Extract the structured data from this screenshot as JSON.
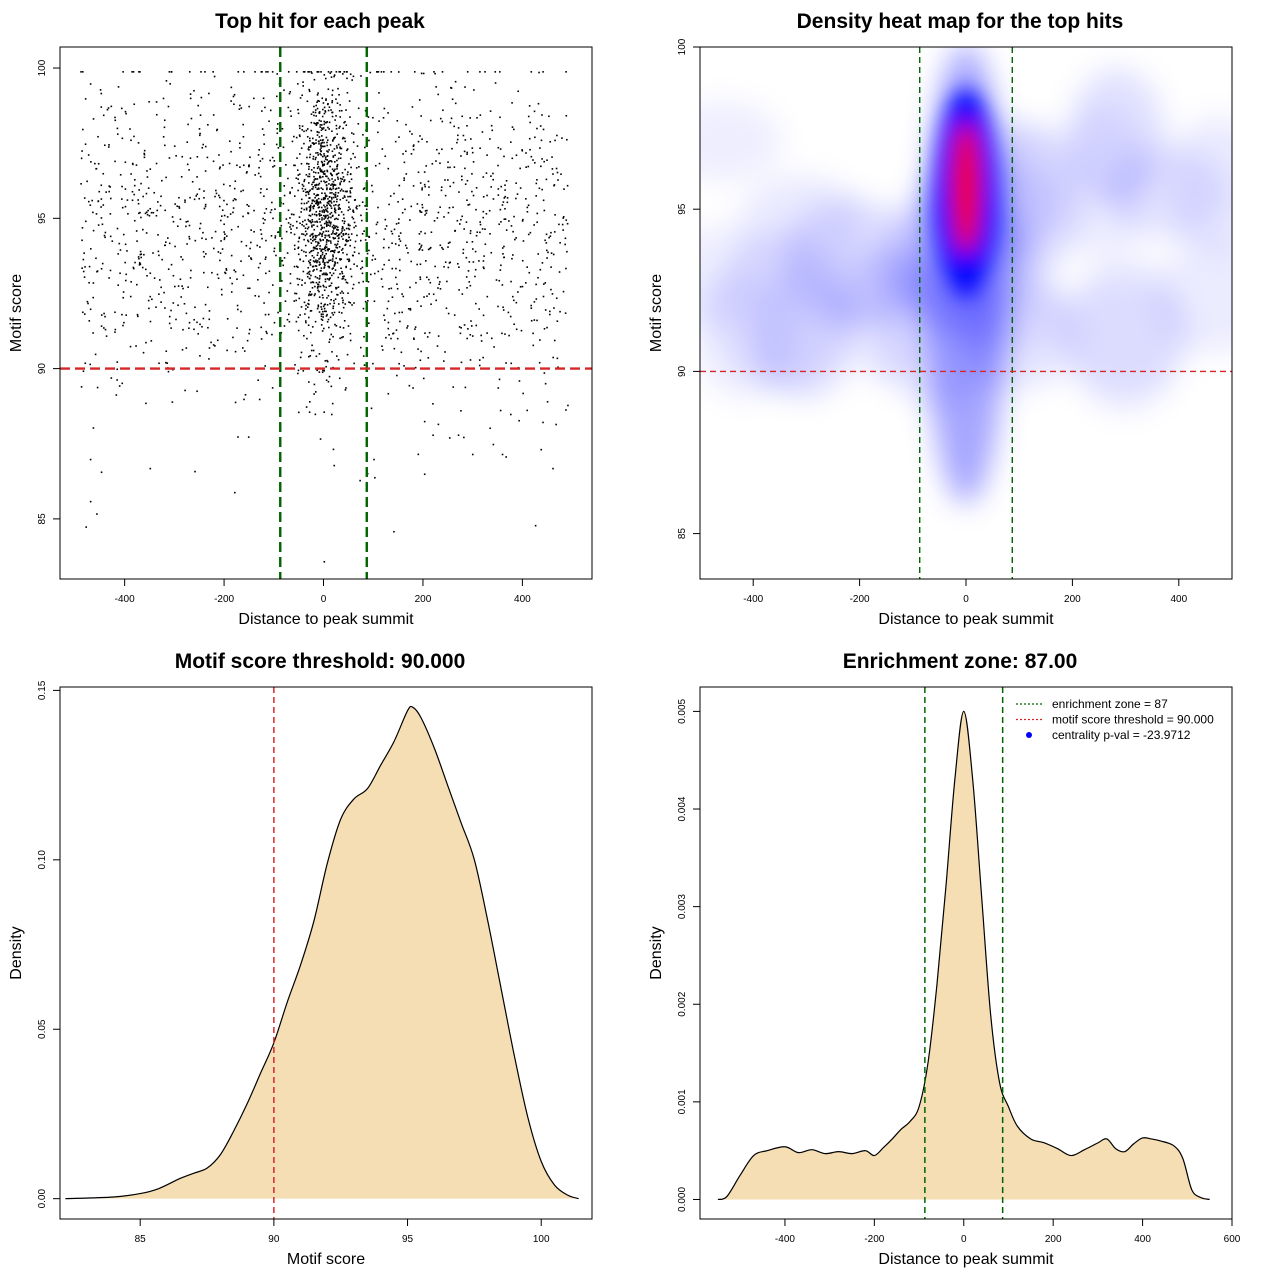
{
  "chart_data": [
    {
      "type": "scatter",
      "title": "Top hit for each peak",
      "xlabel": "Distance to peak summit",
      "ylabel": "Motif score",
      "xlim": [
        -530,
        540
      ],
      "ylim": [
        83,
        100.7
      ],
      "xticks": [
        -400,
        -200,
        0,
        200,
        400
      ],
      "yticks": [
        85,
        90,
        95,
        100
      ],
      "hlines": [
        {
          "y": 90,
          "color": "#d62728",
          "style": "dashed"
        }
      ],
      "vlines": [
        {
          "x": -87,
          "color": "#006400",
          "style": "dashed"
        },
        {
          "x": 87,
          "color": "#006400",
          "style": "dashed"
        }
      ],
      "point_color": "#000000",
      "sample_points": [
        [
          -480,
          99
        ],
        [
          -450,
          99.3
        ],
        [
          -310,
          99.5
        ],
        [
          -240,
          99.9
        ],
        [
          -90,
          99.5
        ],
        [
          0,
          99.8
        ],
        [
          40,
          99.9
        ],
        [
          110,
          99.2
        ],
        [
          225,
          99.4
        ],
        [
          440,
          99.9
        ],
        [
          -400,
          96
        ],
        [
          -300,
          95.5
        ],
        [
          -200,
          94.5
        ],
        [
          -120,
          95.2
        ],
        [
          -30,
          96.5
        ],
        [
          -10,
          95
        ],
        [
          10,
          94
        ],
        [
          30,
          97.2
        ],
        [
          60,
          93.5
        ],
        [
          150,
          95
        ],
        [
          250,
          94.2
        ],
        [
          350,
          95.8
        ],
        [
          470,
          96.3
        ],
        [
          -470,
          92
        ],
        [
          -350,
          93.2
        ],
        [
          -250,
          91.5
        ],
        [
          -150,
          92.7
        ],
        [
          -50,
          93
        ],
        [
          20,
          92.2
        ],
        [
          120,
          91.8
        ],
        [
          220,
          92.5
        ],
        [
          320,
          93.4
        ],
        [
          420,
          91.2
        ],
        [
          -460,
          90.5
        ],
        [
          -280,
          89.3
        ],
        [
          -130,
          89
        ],
        [
          -20,
          89.5
        ],
        [
          15,
          88.5
        ],
        [
          60,
          90.2
        ],
        [
          200,
          89.7
        ],
        [
          400,
          89.2
        ],
        [
          490,
          88.8
        ],
        [
          -470,
          87
        ],
        [
          -350,
          86.7
        ],
        [
          -260,
          86.6
        ],
        [
          20,
          86.8
        ],
        [
          100,
          87
        ],
        [
          340,
          87.5
        ],
        [
          460,
          86.7
        ],
        [
          -470,
          85.6
        ],
        [
          -180,
          85.9
        ],
        [
          72,
          86.3
        ],
        [
          140,
          84.6
        ],
        [
          425,
          84.8
        ],
        [
          0,
          83.6
        ]
      ]
    },
    {
      "type": "heatmap",
      "title": "Density heat map for the top hits",
      "xlabel": "Distance to peak summit",
      "ylabel": "Motif score",
      "xlim": [
        -500,
        500
      ],
      "ylim": [
        83.6,
        100
      ],
      "xticks": [
        -400,
        -200,
        0,
        200,
        400
      ],
      "yticks": [
        85,
        90,
        95,
        100
      ],
      "colors": [
        "#ffffff",
        "#0000ff",
        "#ff0000"
      ],
      "hotspot": {
        "x": 0,
        "y": 95.5
      },
      "hlines": [
        {
          "y": 90,
          "color": "#d62728",
          "style": "dashed"
        }
      ],
      "vlines": [
        {
          "x": -87,
          "color": "#006400",
          "style": "dashed"
        },
        {
          "x": 87,
          "color": "#006400",
          "style": "dashed"
        }
      ]
    },
    {
      "type": "area",
      "title": "Motif score threshold: 90.000",
      "xlabel": "Motif score",
      "ylabel": "Density",
      "xlim": [
        82,
        101.9
      ],
      "ylim": [
        -0.006,
        0.151
      ],
      "xticks": [
        85,
        90,
        95,
        100
      ],
      "yticks": [
        0.0,
        0.05,
        0.1,
        0.15
      ],
      "ytick_labels": [
        "0.00",
        "0.05",
        "0.10",
        "0.15"
      ],
      "fill": "#f5deb3",
      "vlines": [
        {
          "x": 90,
          "color": "#d62728",
          "style": "dashed"
        }
      ],
      "x": [
        82.2,
        84,
        85,
        85.7,
        86.5,
        87.0,
        87.5,
        88,
        88.5,
        89,
        89.5,
        90,
        90.5,
        91,
        91.5,
        92,
        92.5,
        93,
        93.5,
        94,
        94.5,
        95,
        95.2,
        95.5,
        96,
        96.5,
        97,
        97.5,
        98,
        98.5,
        99,
        99.5,
        100,
        100.5,
        101,
        101.4
      ],
      "values": [
        0,
        0.0005,
        0.0015,
        0.003,
        0.006,
        0.0075,
        0.009,
        0.013,
        0.02,
        0.028,
        0.037,
        0.046,
        0.058,
        0.069,
        0.082,
        0.099,
        0.112,
        0.118,
        0.121,
        0.128,
        0.135,
        0.144,
        0.145,
        0.142,
        0.133,
        0.122,
        0.111,
        0.1,
        0.082,
        0.062,
        0.042,
        0.024,
        0.011,
        0.004,
        0.001,
        0
      ]
    },
    {
      "type": "area",
      "title": "Enrichment zone: 87.00",
      "xlabel": "Distance to peak summit",
      "ylabel": "Density",
      "xlim": [
        -590,
        600
      ],
      "ylim": [
        -0.0002,
        0.00525
      ],
      "xticks": [
        -400,
        -200,
        0,
        200,
        400,
        600
      ],
      "yticks": [
        0.0,
        0.001,
        0.002,
        0.003,
        0.004,
        0.005
      ],
      "ytick_labels": [
        "0.000",
        "0.001",
        "0.002",
        "0.003",
        "0.004",
        "0.005"
      ],
      "fill": "#f5deb3",
      "vlines": [
        {
          "x": -87,
          "color": "#006400",
          "style": "dashed"
        },
        {
          "x": 87,
          "color": "#006400",
          "style": "dashed"
        }
      ],
      "legend": {
        "position": "top-right",
        "entries": [
          {
            "label": "enrichment zone = 87",
            "color": "#006400",
            "kind": "line"
          },
          {
            "label": "motif score threshold = 90.000",
            "color": "#d62728",
            "kind": "line"
          },
          {
            "label": "centrality p-val = -23.9712",
            "color": "#0000ff",
            "kind": "point"
          }
        ]
      },
      "x": [
        -550,
        -530,
        -500,
        -470,
        -440,
        -400,
        -370,
        -340,
        -310,
        -280,
        -250,
        -220,
        -200,
        -180,
        -160,
        -140,
        -120,
        -100,
        -80,
        -60,
        -40,
        -20,
        0,
        20,
        40,
        60,
        80,
        100,
        120,
        150,
        180,
        210,
        240,
        270,
        300,
        320,
        340,
        360,
        380,
        400,
        420,
        440,
        470,
        490,
        510,
        530,
        550
      ],
      "values": [
        0,
        3e-05,
        0.00025,
        0.00045,
        0.0005,
        0.00054,
        0.00048,
        0.00051,
        0.00047,
        0.00049,
        0.00047,
        0.0005,
        0.00045,
        0.00053,
        0.00062,
        0.00072,
        0.0008,
        0.00095,
        0.0014,
        0.0022,
        0.0032,
        0.0043,
        0.005,
        0.0043,
        0.0031,
        0.0019,
        0.0012,
        0.00095,
        0.00075,
        0.00062,
        0.00058,
        0.00052,
        0.00045,
        0.00051,
        0.00058,
        0.00062,
        0.00052,
        0.00049,
        0.00057,
        0.00063,
        0.00062,
        0.0006,
        0.00055,
        0.00042,
        0.0001,
        2e-05,
        0
      ]
    }
  ]
}
